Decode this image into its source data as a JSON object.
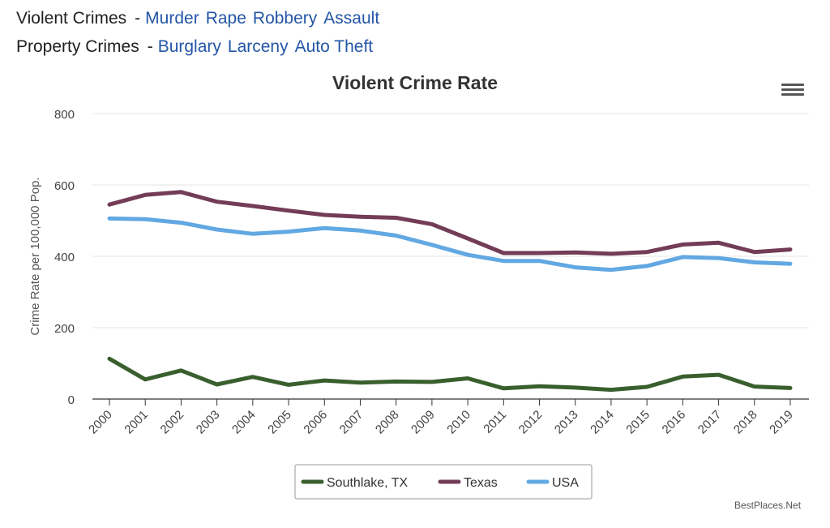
{
  "nav": {
    "violent": {
      "label": "Violent Crimes",
      "dash": "-",
      "links": [
        "Murder",
        "Rape",
        "Robbery",
        "Assault"
      ]
    },
    "property": {
      "label": "Property Crimes",
      "dash": "-",
      "links": [
        "Burglary",
        "Larceny",
        "Auto Theft"
      ]
    }
  },
  "menu_icon": "hamburger-menu-icon",
  "watermark": "BestPlaces.Net",
  "colors": {
    "southlake": "#3a5f2e",
    "texas": "#733c57",
    "usa": "#62a8e2",
    "grid": "#e6e6e6",
    "axis": "#333333"
  },
  "chart_data": {
    "type": "line",
    "title": "Violent Crime Rate",
    "xlabel": "",
    "ylabel": "Crime Rate per 100,000 Pop.",
    "ylim": [
      0,
      800
    ],
    "yticks": [
      0,
      200,
      400,
      600,
      800
    ],
    "grid": true,
    "legend_position": "bottom-center",
    "categories": [
      "2000",
      "2001",
      "2002",
      "2003",
      "2004",
      "2005",
      "2006",
      "2007",
      "2008",
      "2009",
      "2010",
      "2011",
      "2012",
      "2013",
      "2014",
      "2015",
      "2016",
      "2017",
      "2018",
      "2019"
    ],
    "series": [
      {
        "name": "Southlake, TX",
        "color": "#3a5f2e",
        "values": [
          113,
          55,
          80,
          41,
          62,
          40,
          52,
          46,
          49,
          48,
          58,
          30,
          36,
          32,
          26,
          34,
          63,
          68,
          35,
          31
        ]
      },
      {
        "name": "Texas",
        "color": "#733c57",
        "values": [
          545,
          572,
          580,
          553,
          541,
          528,
          516,
          511,
          508,
          490,
          450,
          409,
          409,
          411,
          407,
          412,
          433,
          438,
          412,
          419
        ]
      },
      {
        "name": "USA",
        "color": "#62a8e2",
        "values": [
          506,
          504,
          494,
          475,
          463,
          469,
          479,
          472,
          458,
          432,
          404,
          387,
          387,
          369,
          362,
          373,
          398,
          395,
          383,
          379
        ]
      }
    ]
  }
}
